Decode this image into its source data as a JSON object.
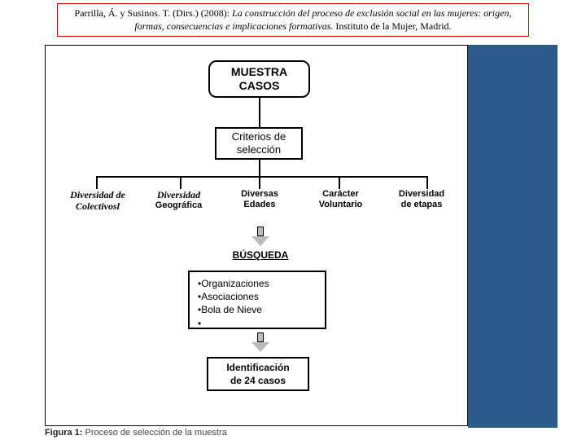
{
  "citation": {
    "authors": "Parrilla, Á. y Susinos. T. (Dirs.) (2008): ",
    "title_italic": "La construcción del proceso de exclusión social en las mujeres: origen, formas, consecuencias e implicaciones formativas",
    "tail": ". Instituto de la Mujer, Madrid."
  },
  "nodes": {
    "muestra_l1": "MUESTRA",
    "muestra_l2": "CASOS",
    "criterios_l1": "Criterios de",
    "criterios_l2": "selección",
    "busqueda": "BÚSQUEDA",
    "identif_l1": "Identificación",
    "identif_l2": "de 24 casos"
  },
  "criteria": {
    "c1_l1": "Diversidad de",
    "c1_l2": "Colectivosl",
    "c2_l1": "Diversidad",
    "c2_l2": "Geográfica",
    "c3_l1": "Diversas",
    "c3_l2": "Edades",
    "c4_l1": "Carácter",
    "c4_l2": "Voluntario",
    "c5_l1": "Diversidad",
    "c5_l2": "de etapas"
  },
  "listbox": {
    "i1": "Organizaciones",
    "i2": "Asociaciones",
    "i3": "Bola  de  Nieve",
    "i4": ""
  },
  "caption": {
    "label": "Figura 1:",
    "text": " Proceso de selección de la muestra"
  },
  "colors": {
    "band": "#2a5b8a",
    "band_accent": "#5a84ac",
    "citation_border": "#c00000",
    "arrow_fill": "#bbbbbb"
  }
}
